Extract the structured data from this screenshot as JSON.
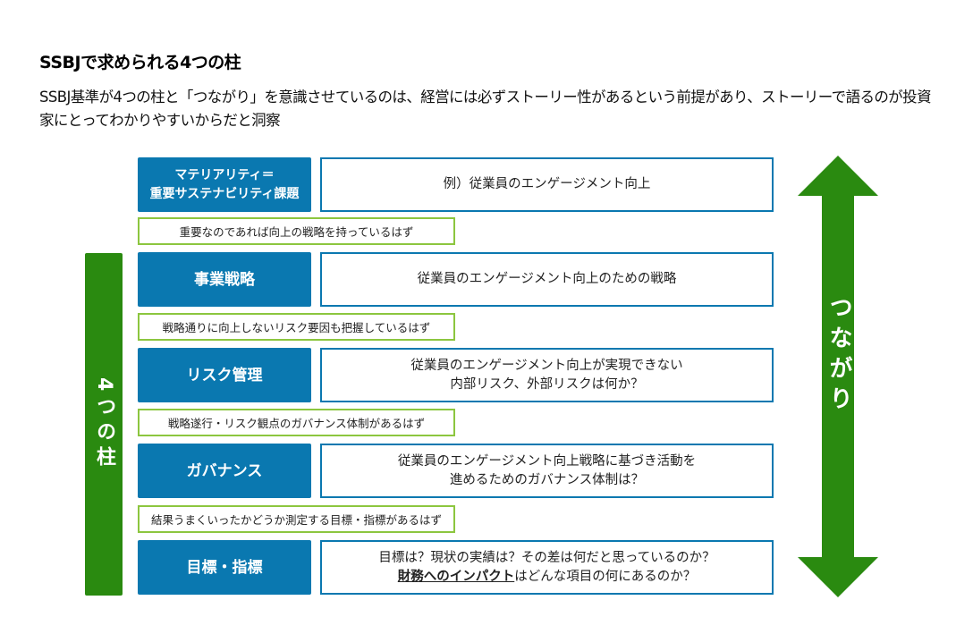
{
  "title": "SSBJで求められる4つの柱",
  "subtitle": "SSBJ基準が4つの柱と「つながり」を意識させているのは、経営には必ずストーリー性があるという前提があり、ストーリーで語るのが投資家にとってわかりやすいからだと洞察",
  "left_bar": "4つの柱",
  "arrow_label": "つながり",
  "colors": {
    "pillar": "#0a78b0",
    "bar": "#2a8a10",
    "link_border": "#8cc63f"
  },
  "rows": [
    {
      "pillar": "マテリアリティ＝\n重要サステナビリティ課題",
      "desc": "例）従業員のエンゲージメント向上"
    },
    {
      "pillar": "事業戦略",
      "desc": "従業員のエンゲージメント向上のための戦略"
    },
    {
      "pillar": "リスク管理",
      "desc": "従業員のエンゲージメント向上が実現できない\n内部リスク、外部リスクは何か？"
    },
    {
      "pillar": "ガバナンス",
      "desc": "従業員のエンゲージメント向上戦略に基づき活動を\n進めるためのガバナンス体制は？"
    },
    {
      "pillar": "目標・指標",
      "desc_line1": "目標は？現状の実績は？その差は何だと思っているのか？",
      "desc_emph": "財務へのインパクト",
      "desc_line2": "はどんな項目の何にあるのか？"
    }
  ],
  "links": [
    "重要なのであれば向上の戦略を持っているはず",
    "戦略通りに向上しないリスク要因も把握しているはず",
    "戦略遂行・リスク観点のガバナンス体制があるはず",
    "結果うまくいったかどうか測定する目標・指標があるはず"
  ]
}
